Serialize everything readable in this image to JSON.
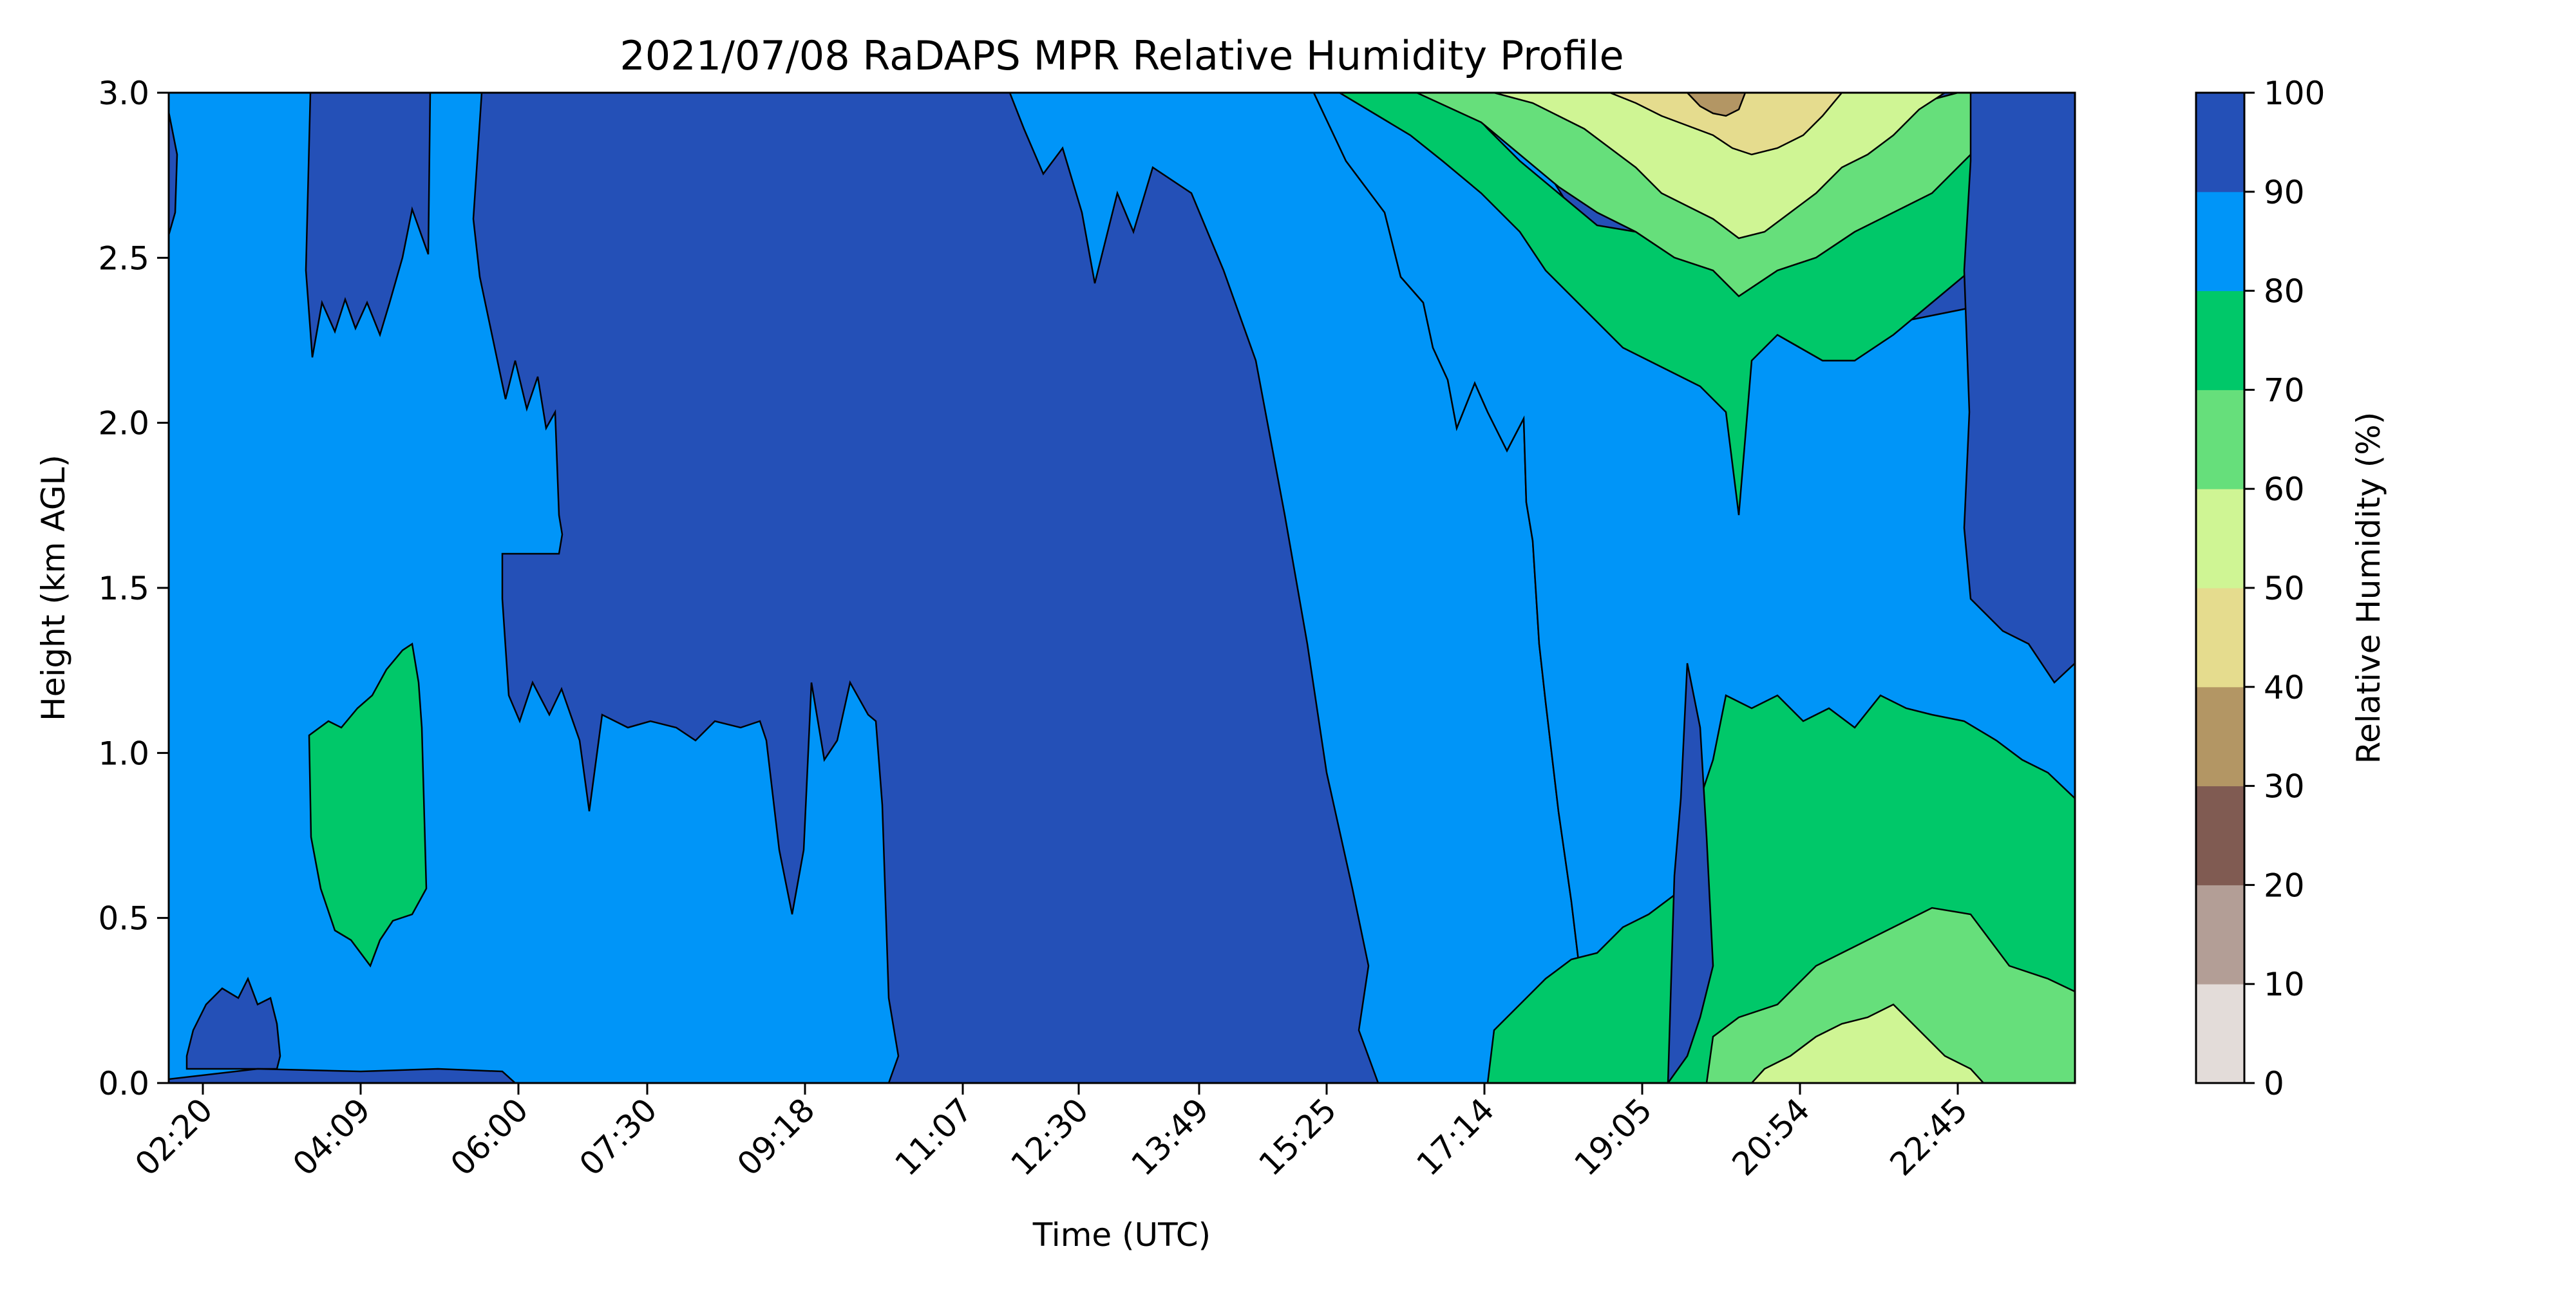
{
  "chart_data": {
    "type": "heatmap",
    "plot_kind": "filled-contour",
    "title": "2021/07/08 RaDAPS MPR Relative Humidity Profile",
    "xlabel": "Time (UTC)",
    "ylabel": "Height (km AGL)",
    "colorbar_label": "Relative Humidity (%)",
    "x_tick_labels": [
      "02:20",
      "04:09",
      "06:00",
      "07:30",
      "09:18",
      "11:07",
      "12:30",
      "13:49",
      "15:25",
      "17:14",
      "19:05",
      "20:54",
      "22:45"
    ],
    "y_ticks": [
      0.0,
      0.5,
      1.0,
      1.5,
      2.0,
      2.5,
      3.0
    ],
    "y_tick_labels": [
      "0.0",
      "0.5",
      "1.0",
      "1.5",
      "2.0",
      "2.5",
      "3.0"
    ],
    "ylim": [
      0.0,
      3.0
    ],
    "colorbar_ticks": [
      0,
      10,
      20,
      30,
      40,
      50,
      60,
      70,
      80,
      90,
      100
    ],
    "colorbar_tick_labels": [
      "0",
      "10",
      "20",
      "30",
      "40",
      "50",
      "60",
      "70",
      "80",
      "90",
      "100"
    ],
    "levels": [
      {
        "range": [
          0,
          10
        ],
        "color": "#e3dcd9"
      },
      {
        "range": [
          10,
          20
        ],
        "color": "#b39e96"
      },
      {
        "range": [
          20,
          30
        ],
        "color": "#805b52"
      },
      {
        "range": [
          30,
          40
        ],
        "color": "#b39664"
      },
      {
        "range": [
          40,
          50
        ],
        "color": "#e5dc8e"
      },
      {
        "range": [
          50,
          60
        ],
        "color": "#cff594"
      },
      {
        "range": [
          60,
          70
        ],
        "color": "#66df7b"
      },
      {
        "range": [
          70,
          80
        ],
        "color": "#00c869"
      },
      {
        "range": [
          80,
          90
        ],
        "color": "#0095f8"
      },
      {
        "range": [
          90,
          100
        ],
        "color": "#2450b7"
      }
    ],
    "grid": false,
    "legend": "colorbar-right"
  }
}
